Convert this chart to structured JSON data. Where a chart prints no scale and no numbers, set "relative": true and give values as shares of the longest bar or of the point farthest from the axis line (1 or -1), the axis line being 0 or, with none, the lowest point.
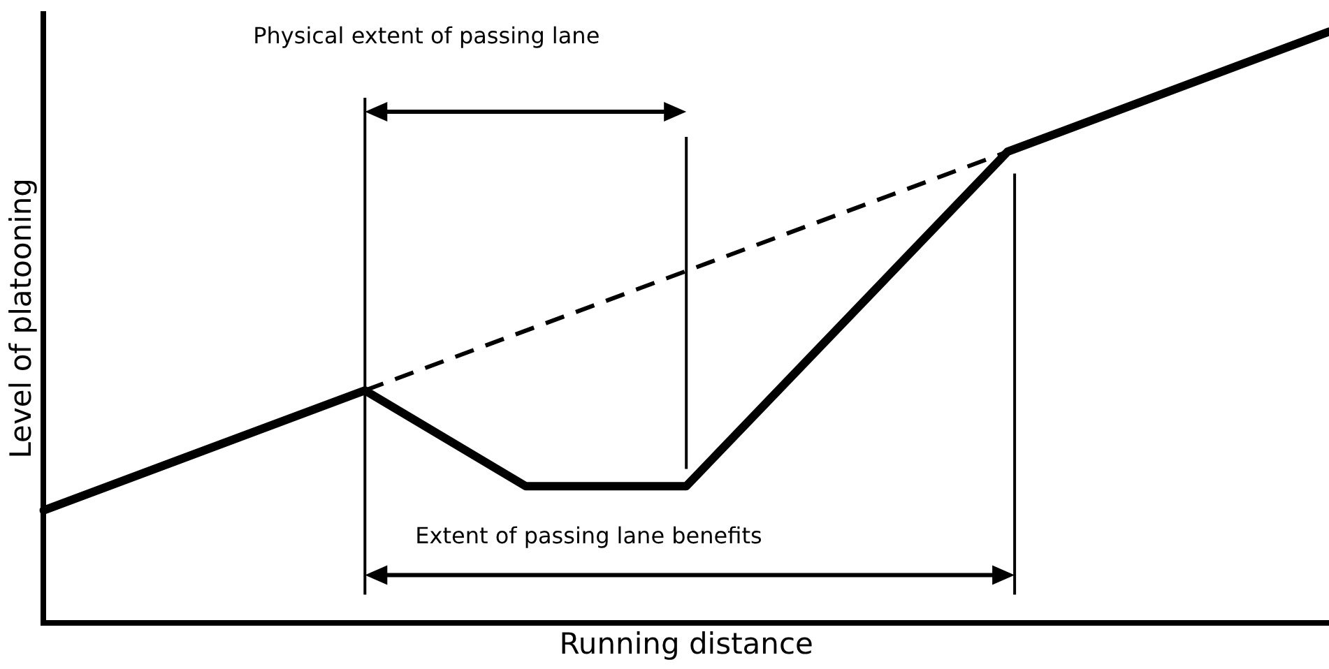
{
  "chart_data": {
    "type": "line",
    "xlabel": "Running distance",
    "ylabel": "Level of platooning",
    "relative": true,
    "legend": false,
    "grid": false,
    "marker": "none",
    "categories": [
      null,
      null,
      null,
      null,
      null,
      null,
      null,
      null,
      null
    ],
    "series": [
      {
        "color": "#000000",
        "line_style": "solid",
        "values": [
          0.19,
          null,
          0.393,
          0.231,
          0.231,
          null,
          0.797,
          null,
          1
        ]
      },
      {
        "color": "#000000",
        "line_style": "dashed",
        "values": [
          null,
          null,
          0.393,
          null,
          null,
          null,
          0.797,
          null,
          null
        ]
      }
    ],
    "annotations": [
      "Physical extent of passing lane",
      "Extent of passing lane benefits"
    ]
  }
}
